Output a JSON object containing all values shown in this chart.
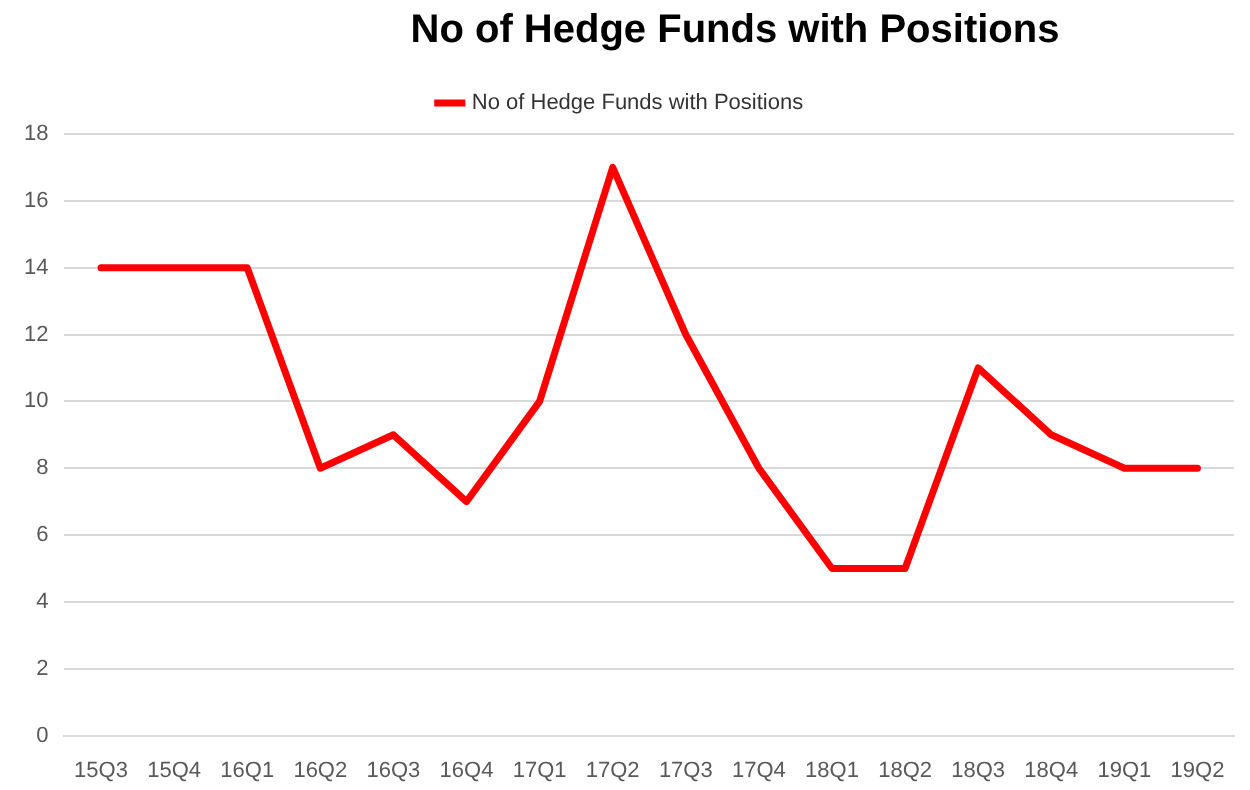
{
  "chart_data": {
    "type": "line",
    "title": "No of Hedge Funds with Positions",
    "categories": [
      "15Q3",
      "15Q4",
      "16Q1",
      "16Q2",
      "16Q3",
      "16Q4",
      "17Q1",
      "17Q2",
      "17Q3",
      "17Q4",
      "18Q1",
      "18Q2",
      "18Q3",
      "18Q4",
      "19Q1",
      "19Q2"
    ],
    "series": [
      {
        "name": "No of Hedge Funds with Positions",
        "color": "#ff0000",
        "values": [
          14,
          14,
          14,
          8,
          9,
          7,
          10,
          17,
          12,
          8,
          5,
          5,
          11,
          9,
          8,
          8
        ]
      }
    ],
    "ylim": [
      0,
      18
    ],
    "yticks": [
      0,
      2,
      4,
      6,
      8,
      10,
      12,
      14,
      16,
      18
    ],
    "grid": "y",
    "legend": "top",
    "marker": "none",
    "line_style": "solid"
  }
}
